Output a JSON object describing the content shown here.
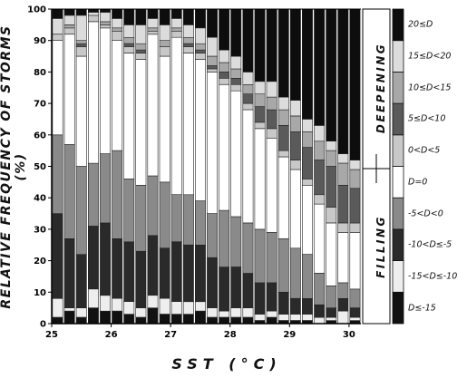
{
  "chart_data": {
    "type": "bar",
    "stacked": true,
    "x": [
      25.0,
      25.2,
      25.4,
      25.6,
      25.8,
      26.0,
      26.2,
      26.4,
      26.6,
      26.8,
      27.0,
      27.2,
      27.4,
      27.6,
      27.8,
      28.0,
      28.2,
      28.4,
      28.6,
      28.8,
      29.0,
      29.2,
      29.4,
      29.6,
      29.8,
      30.0
    ],
    "xlabel": "SST (°C)",
    "ylabel": "RELATIVE FREQUENCY OF STORMS (%)",
    "xticks": [
      "25",
      "26",
      "27",
      "28",
      "29",
      "30"
    ],
    "yticks": [
      "0",
      "10",
      "20",
      "30",
      "40",
      "50",
      "60",
      "70",
      "80",
      "90",
      "100"
    ],
    "ylim": [
      0,
      100
    ],
    "group_labels": [
      "DEEPENING",
      "FILLING"
    ],
    "series": [
      {
        "name": "D≤-15",
        "color": "#111111",
        "values": [
          2,
          4,
          2,
          5,
          4,
          4,
          3,
          2,
          5,
          3,
          3,
          3,
          4,
          2,
          2,
          2,
          2,
          1,
          2,
          1,
          1,
          1,
          0,
          1,
          0,
          1
        ]
      },
      {
        "name": "-15<D≤-10",
        "color": "#eeeeee",
        "values": [
          6,
          1,
          3,
          6,
          5,
          4,
          4,
          3,
          4,
          5,
          4,
          4,
          3,
          3,
          2,
          3,
          3,
          2,
          2,
          2,
          2,
          2,
          2,
          1,
          4,
          1
        ]
      },
      {
        "name": "-10<D≤-5",
        "color": "#2a2a2a",
        "values": [
          27,
          22,
          17,
          20,
          23,
          19,
          19,
          18,
          19,
          16,
          19,
          18,
          18,
          16,
          14,
          13,
          11,
          10,
          9,
          7,
          5,
          5,
          4,
          3,
          4,
          3
        ]
      },
      {
        "name": "-5<D<0",
        "color": "#8a8a8a",
        "values": [
          25,
          30,
          28,
          20,
          22,
          28,
          20,
          21,
          19,
          21,
          15,
          16,
          14,
          14,
          18,
          16,
          16,
          17,
          16,
          17,
          16,
          14,
          10,
          7,
          5,
          6
        ]
      },
      {
        "name": "D=0",
        "color": "#ffffff",
        "values": [
          30,
          35,
          35,
          45,
          40,
          35,
          40,
          40,
          45,
          40,
          50,
          45,
          45,
          45,
          40,
          40,
          36,
          32,
          30,
          26,
          25,
          22,
          22,
          20,
          16,
          18
        ]
      },
      {
        "name": "0<D<5",
        "color": "#c8c8c8",
        "values": [
          2,
          2,
          3,
          2,
          1,
          3,
          2,
          2,
          1,
          3,
          2,
          2,
          2,
          1,
          2,
          2,
          2,
          2,
          3,
          2,
          3,
          2,
          3,
          5,
          3,
          3
        ]
      },
      {
        "name": "5≤D<10",
        "color": "#5a5a5a",
        "values": [
          0,
          0,
          1,
          0,
          0,
          0,
          1,
          1,
          0,
          0,
          0,
          1,
          1,
          1,
          2,
          2,
          3,
          5,
          6,
          8,
          9,
          10,
          11,
          13,
          12,
          11
        ]
      },
      {
        "name": "10≤D<15",
        "color": "#a8a8a8",
        "values": [
          0,
          1,
          1,
          0,
          1,
          1,
          2,
          2,
          1,
          2,
          1,
          2,
          2,
          3,
          3,
          3,
          3,
          4,
          4,
          5,
          5,
          5,
          6,
          5,
          7,
          6
        ]
      },
      {
        "name": "15≤D<20",
        "color": "#dcdcdc",
        "values": [
          5,
          3,
          8,
          1,
          3,
          3,
          4,
          6,
          3,
          5,
          3,
          4,
          5,
          6,
          4,
          4,
          4,
          4,
          5,
          4,
          5,
          4,
          5,
          3,
          3,
          3
        ]
      },
      {
        "name": "20≤D",
        "color": "#0d0d0d",
        "values": [
          3,
          2,
          2,
          1,
          1,
          3,
          5,
          5,
          3,
          5,
          3,
          5,
          6,
          9,
          13,
          15,
          20,
          23,
          23,
          28,
          29,
          35,
          37,
          42,
          46,
          48
        ]
      }
    ]
  }
}
